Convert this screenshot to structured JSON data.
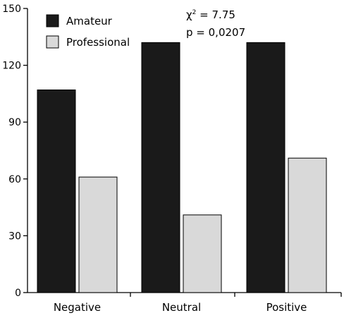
{
  "chart_data": {
    "type": "bar",
    "categories": [
      "Negative",
      "Neutral",
      "Positive"
    ],
    "series": [
      {
        "name": "Amateur",
        "values": [
          107,
          132,
          132
        ],
        "color": "#1a1a1a"
      },
      {
        "name": "Professional",
        "values": [
          61,
          41,
          71
        ],
        "color": "#d9d9d9"
      }
    ],
    "ylim": [
      0,
      150
    ],
    "yticks": [
      "0",
      "30",
      "60",
      "90",
      "120",
      "150"
    ],
    "ytick_values": [
      0,
      30,
      60,
      90,
      120,
      150
    ],
    "title": "",
    "xlabel": "",
    "ylabel": "",
    "legend_position": "top-left",
    "grid": false,
    "annotation": {
      "chi_symbol": "χ",
      "chi_sup": "2",
      "chi_value": " = 7.75",
      "p_line": "p = 0,0207"
    }
  }
}
